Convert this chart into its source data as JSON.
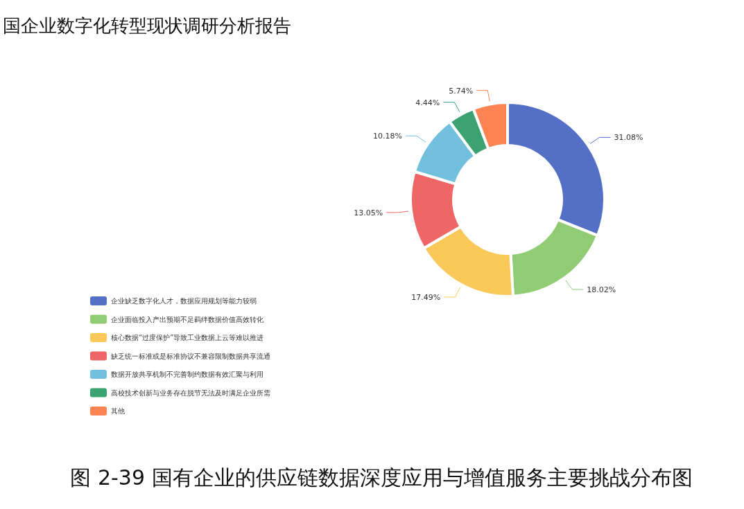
{
  "chart_data": {
    "type": "donut",
    "title": "国企业数字化转型现状调研分析报告",
    "annotations": [
      "图 2-39  国有企业的供应链数据深度应用与增值服务主要挑战分布图"
    ],
    "categories": [
      "企业缺乏数字化人才，数据应用规划等能力较弱",
      "企业面临投入产出预期不足羁绊数据价值高效转化",
      "核心数据“过度保护”导致工业数据上云等难以推进",
      "缺乏统一标准或是标准协议不兼容限制数据共享流通",
      "数据开放共享机制不完善制约数据有效汇聚与利用",
      "高校技术创新与业务存在脱节无法及时满足企业所需",
      "其他"
    ],
    "values": [
      31.08,
      18.02,
      17.49,
      13.05,
      10.18,
      4.44,
      5.74
    ],
    "value_labels": [
      "31.08%",
      "18.02%",
      "17.49%",
      "13.05%",
      "10.18%",
      "4.44%",
      "5.74%"
    ],
    "colors": [
      "#5470c6",
      "#91cc75",
      "#fac858",
      "#ee6666",
      "#73c0de",
      "#3ba272",
      "#fc8452"
    ],
    "legend": "bottom left"
  }
}
